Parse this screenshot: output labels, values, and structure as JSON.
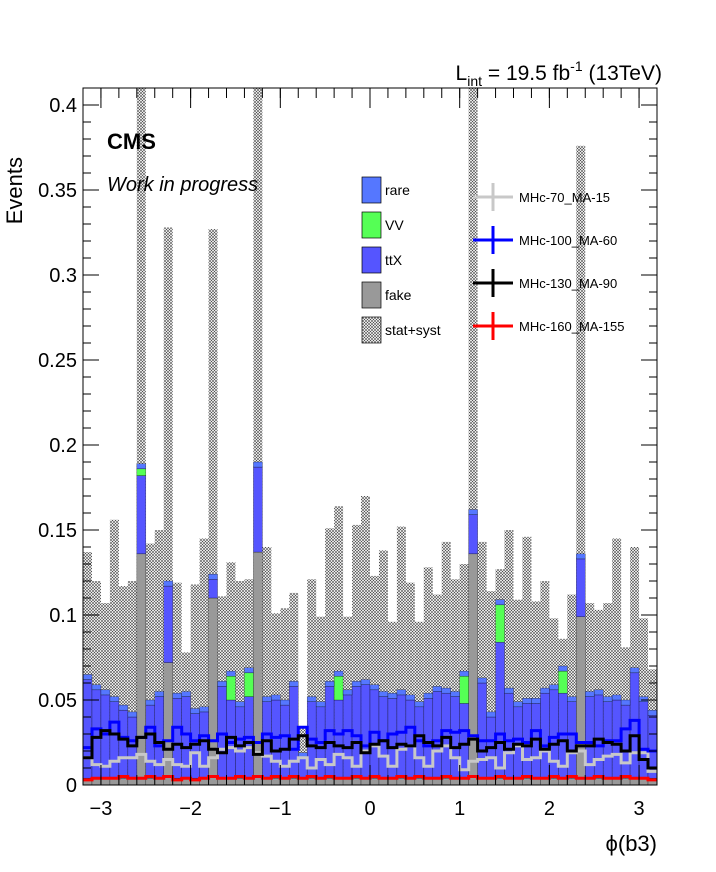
{
  "chart_data": {
    "type": "bar",
    "stacked": true,
    "lumi_label": "L_int = 19.5 fb^-1 (13TeV)",
    "lumi": {
      "prefix": "L",
      "sub": "int",
      "mid": " = 19.5 fb",
      "sup": "-1",
      "suffix": " (13TeV)"
    },
    "cms_label": "CMS",
    "cms_sublabel": "Work in progress",
    "xlabel": "ϕ(b3)",
    "ylabel": "Events",
    "xlim": [
      -3.2,
      3.2
    ],
    "ylim": [
      0,
      0.41
    ],
    "xticks": [
      -3,
      -2,
      -1,
      0,
      1,
      2,
      3
    ],
    "xtick_labels": [
      "−3",
      "−2",
      "−1",
      "0",
      "1",
      "2",
      "3"
    ],
    "yticks": [
      0,
      0.05,
      0.1,
      0.15,
      0.2,
      0.25,
      0.3,
      0.35,
      0.4
    ],
    "ytick_labels": [
      "0",
      "0.05",
      "0.1",
      "0.15",
      "0.2",
      "0.25",
      "0.3",
      "0.35",
      "0.4"
    ],
    "bin_count": 64,
    "bin_width": 0.1,
    "stack_series": [
      {
        "name": "fake",
        "color": "#999999",
        "values": [
          0.004,
          0.004,
          0.004,
          0.004,
          0.004,
          0.004,
          0.136,
          0.004,
          0.004,
          0.072,
          0.004,
          0.004,
          0.004,
          0.004,
          0.11,
          0.004,
          0.004,
          0.004,
          0.004,
          0.137,
          0.004,
          0.004,
          0.004,
          0.004,
          0.004,
          0.004,
          0.004,
          0.004,
          0.004,
          0.004,
          0.004,
          0.004,
          0.004,
          0.004,
          0.004,
          0.004,
          0.004,
          0.004,
          0.004,
          0.004,
          0.004,
          0.004,
          0.004,
          0.136,
          0.004,
          0.004,
          0.004,
          0.004,
          0.004,
          0.004,
          0.004,
          0.004,
          0.004,
          0.004,
          0.004,
          0.099,
          0.004,
          0.004,
          0.004,
          0.004,
          0.004,
          0.004,
          0.004,
          0.004
        ]
      },
      {
        "name": "ttX",
        "color": "#5555ff",
        "values": [
          0.058,
          0.052,
          0.049,
          0.045,
          0.04,
          0.036,
          0.046,
          0.043,
          0.048,
          0.045,
          0.047,
          0.048,
          0.038,
          0.039,
          0.011,
          0.054,
          0.046,
          0.042,
          0.048,
          0.05,
          0.045,
          0.046,
          0.043,
          0.054,
          0.012,
          0.045,
          0.042,
          0.054,
          0.046,
          0.049,
          0.054,
          0.055,
          0.052,
          0.048,
          0.047,
          0.049,
          0.046,
          0.042,
          0.047,
          0.051,
          0.05,
          0.048,
          0.044,
          0.023,
          0.056,
          0.036,
          0.08,
          0.05,
          0.042,
          0.044,
          0.044,
          0.05,
          0.052,
          0.05,
          0.045,
          0.034,
          0.048,
          0.049,
          0.045,
          0.046,
          0.043,
          0.062,
          0.045,
          0.037
        ]
      },
      {
        "name": "VV",
        "color": "#55ff55",
        "values": [
          0.0,
          0.0,
          0.0,
          0.0,
          0.0,
          0.0,
          0.004,
          0.0,
          0.0,
          0.0,
          0.0,
          0.0,
          0.0,
          0.0,
          0.0,
          0.0,
          0.014,
          0.0,
          0.014,
          0.0,
          0.0,
          0.0,
          0.0,
          0.0,
          0.0,
          0.0,
          0.0,
          0.0,
          0.014,
          0.0,
          0.0,
          0.0,
          0.0,
          0.0,
          0.0,
          0.0,
          0.0,
          0.0,
          0.0,
          0.0,
          0.0,
          0.0,
          0.016,
          0.0,
          0.0,
          0.0,
          0.022,
          0.0,
          0.0,
          0.0,
          0.0,
          0.0,
          0.0,
          0.013,
          0.0,
          0.0,
          0.0,
          0.0,
          0.0,
          0.0,
          0.0,
          0.0,
          0.0,
          0.0
        ]
      },
      {
        "name": "rare",
        "color": "#5577ff",
        "values": [
          0.003,
          0.003,
          0.003,
          0.003,
          0.003,
          0.003,
          0.003,
          0.003,
          0.003,
          0.003,
          0.003,
          0.003,
          0.003,
          0.003,
          0.003,
          0.003,
          0.003,
          0.003,
          0.003,
          0.003,
          0.003,
          0.003,
          0.003,
          0.003,
          0.003,
          0.003,
          0.003,
          0.003,
          0.003,
          0.003,
          0.003,
          0.003,
          0.003,
          0.003,
          0.003,
          0.003,
          0.003,
          0.003,
          0.003,
          0.003,
          0.003,
          0.003,
          0.003,
          0.003,
          0.003,
          0.003,
          0.003,
          0.003,
          0.003,
          0.003,
          0.003,
          0.003,
          0.003,
          0.003,
          0.003,
          0.003,
          0.003,
          0.003,
          0.003,
          0.003,
          0.003,
          0.003,
          0.003,
          0.003
        ]
      }
    ],
    "uncertainty": {
      "name": "stat+syst",
      "upper": [
        0.137,
        0.12,
        0.107,
        0.156,
        0.117,
        0.12,
        0.55,
        0.142,
        0.15,
        0.328,
        0.119,
        0.078,
        0.118,
        0.145,
        0.327,
        0.111,
        0.131,
        0.12,
        0.121,
        0.55,
        0.14,
        0.101,
        0.104,
        0.113,
        0.034,
        0.121,
        0.099,
        0.151,
        0.164,
        0.099,
        0.153,
        0.17,
        0.123,
        0.138,
        0.096,
        0.152,
        0.119,
        0.096,
        0.128,
        0.112,
        0.143,
        0.121,
        0.13,
        0.55,
        0.143,
        0.114,
        0.127,
        0.15,
        0.109,
        0.146,
        0.108,
        0.12,
        0.098,
        0.086,
        0.112,
        0.376,
        0.107,
        0.103,
        0.107,
        0.145,
        0.081,
        0.14,
        0.098,
        0.068
      ]
    },
    "signal_series": [
      {
        "name": "MHc-70_MA-15",
        "color": "#c8c8c8",
        "values": [
          0.016,
          0.012,
          0.011,
          0.014,
          0.016,
          0.016,
          0.018,
          0.014,
          0.012,
          0.015,
          0.012,
          0.011,
          0.019,
          0.011,
          0.016,
          0.021,
          0.022,
          0.02,
          0.022,
          0.019,
          0.017,
          0.014,
          0.011,
          0.014,
          0.016,
          0.01,
          0.015,
          0.012,
          0.018,
          0.016,
          0.011,
          0.02,
          0.023,
          0.017,
          0.011,
          0.021,
          0.023,
          0.016,
          0.011,
          0.02,
          0.023,
          0.016,
          0.009,
          0.014,
          0.015,
          0.016,
          0.01,
          0.019,
          0.023,
          0.015,
          0.016,
          0.02,
          0.014,
          0.011,
          0.019,
          0.02,
          0.012,
          0.015,
          0.017,
          0.018,
          0.013,
          0.019,
          0.019,
          0.008
        ]
      },
      {
        "name": "MHc-100_MA-60",
        "color": "#0000ff",
        "values": [
          0.022,
          0.033,
          0.03,
          0.037,
          0.028,
          0.026,
          0.028,
          0.034,
          0.023,
          0.026,
          0.034,
          0.03,
          0.026,
          0.029,
          0.026,
          0.03,
          0.025,
          0.027,
          0.028,
          0.025,
          0.03,
          0.028,
          0.029,
          0.021,
          0.034,
          0.027,
          0.025,
          0.032,
          0.03,
          0.032,
          0.029,
          0.023,
          0.031,
          0.026,
          0.03,
          0.031,
          0.034,
          0.026,
          0.023,
          0.026,
          0.032,
          0.031,
          0.032,
          0.029,
          0.026,
          0.026,
          0.03,
          0.026,
          0.027,
          0.025,
          0.032,
          0.023,
          0.028,
          0.03,
          0.03,
          0.025,
          0.025,
          0.023,
          0.026,
          0.026,
          0.033,
          0.038,
          0.021,
          0.02
        ]
      },
      {
        "name": "MHc-130_MA-90",
        "color": "#000000",
        "values": [
          0.016,
          0.028,
          0.032,
          0.03,
          0.027,
          0.023,
          0.028,
          0.03,
          0.025,
          0.021,
          0.024,
          0.022,
          0.024,
          0.026,
          0.021,
          0.019,
          0.028,
          0.023,
          0.025,
          0.018,
          0.026,
          0.02,
          0.021,
          0.027,
          0.029,
          0.023,
          0.022,
          0.025,
          0.023,
          0.022,
          0.025,
          0.019,
          0.024,
          0.026,
          0.022,
          0.024,
          0.023,
          0.029,
          0.025,
          0.023,
          0.028,
          0.022,
          0.024,
          0.027,
          0.02,
          0.022,
          0.025,
          0.021,
          0.024,
          0.023,
          0.027,
          0.021,
          0.024,
          0.026,
          0.02,
          0.023,
          0.023,
          0.027,
          0.025,
          0.024,
          0.02,
          0.029,
          0.015,
          0.01
        ]
      },
      {
        "name": "MHc-160_MA-155",
        "color": "#ff0000",
        "values": [
          0.003,
          0.004,
          0.004,
          0.004,
          0.005,
          0.004,
          0.004,
          0.005,
          0.004,
          0.005,
          0.003,
          0.004,
          0.003,
          0.004,
          0.005,
          0.004,
          0.004,
          0.005,
          0.004,
          0.005,
          0.004,
          0.005,
          0.004,
          0.005,
          0.004,
          0.005,
          0.004,
          0.005,
          0.004,
          0.004,
          0.005,
          0.004,
          0.005,
          0.004,
          0.004,
          0.005,
          0.004,
          0.005,
          0.004,
          0.004,
          0.005,
          0.004,
          0.004,
          0.005,
          0.004,
          0.004,
          0.005,
          0.004,
          0.004,
          0.005,
          0.004,
          0.004,
          0.005,
          0.004,
          0.005,
          0.004,
          0.004,
          0.005,
          0.004,
          0.004,
          0.005,
          0.004,
          0.004,
          0.003
        ]
      }
    ],
    "legend_placement": "top-right",
    "legend_left": [
      "rare",
      "VV",
      "ttX",
      "fake",
      "stat+syst"
    ],
    "legend_right": [
      "MHc-70_MA-15",
      "MHc-100_MA-60",
      "MHc-130_MA-90",
      "MHc-160_MA-155"
    ],
    "grid": false
  }
}
